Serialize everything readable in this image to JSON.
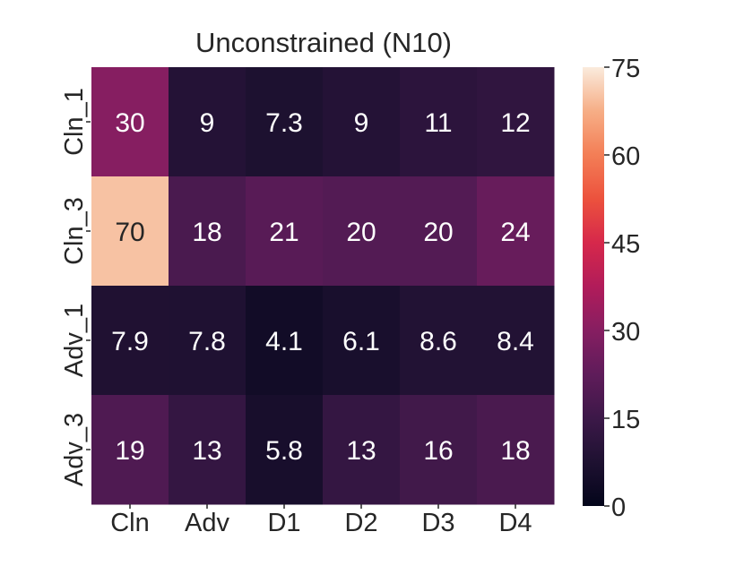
{
  "chart_data": {
    "type": "heatmap",
    "title": "Unconstrained (N10)",
    "x_categories": [
      "Cln",
      "Adv",
      "D1",
      "D2",
      "D3",
      "D4"
    ],
    "y_categories": [
      "Cln_1",
      "Cln_3",
      "Adv_1",
      "Adv_3"
    ],
    "values": [
      [
        30,
        9,
        7.3,
        9,
        11,
        12
      ],
      [
        70,
        18,
        21,
        20,
        20,
        24
      ],
      [
        7.9,
        7.8,
        4.1,
        6.1,
        8.6,
        8.4
      ],
      [
        19,
        13,
        5.8,
        13,
        16,
        18
      ]
    ],
    "value_labels": [
      [
        "30",
        "9",
        "7.3",
        "9",
        "11",
        "12"
      ],
      [
        "70",
        "18",
        "21",
        "20",
        "20",
        "24"
      ],
      [
        "7.9",
        "7.8",
        "4.1",
        "6.1",
        "8.6",
        "8.4"
      ],
      [
        "19",
        "13",
        "5.8",
        "13",
        "16",
        "18"
      ]
    ],
    "colorbar": {
      "vmin": 0,
      "vmax": 75,
      "ticks": [
        0,
        15,
        30,
        45,
        60,
        75
      ],
      "colormap": "rocket"
    },
    "xlabel": "",
    "ylabel": "",
    "grid": false
  }
}
